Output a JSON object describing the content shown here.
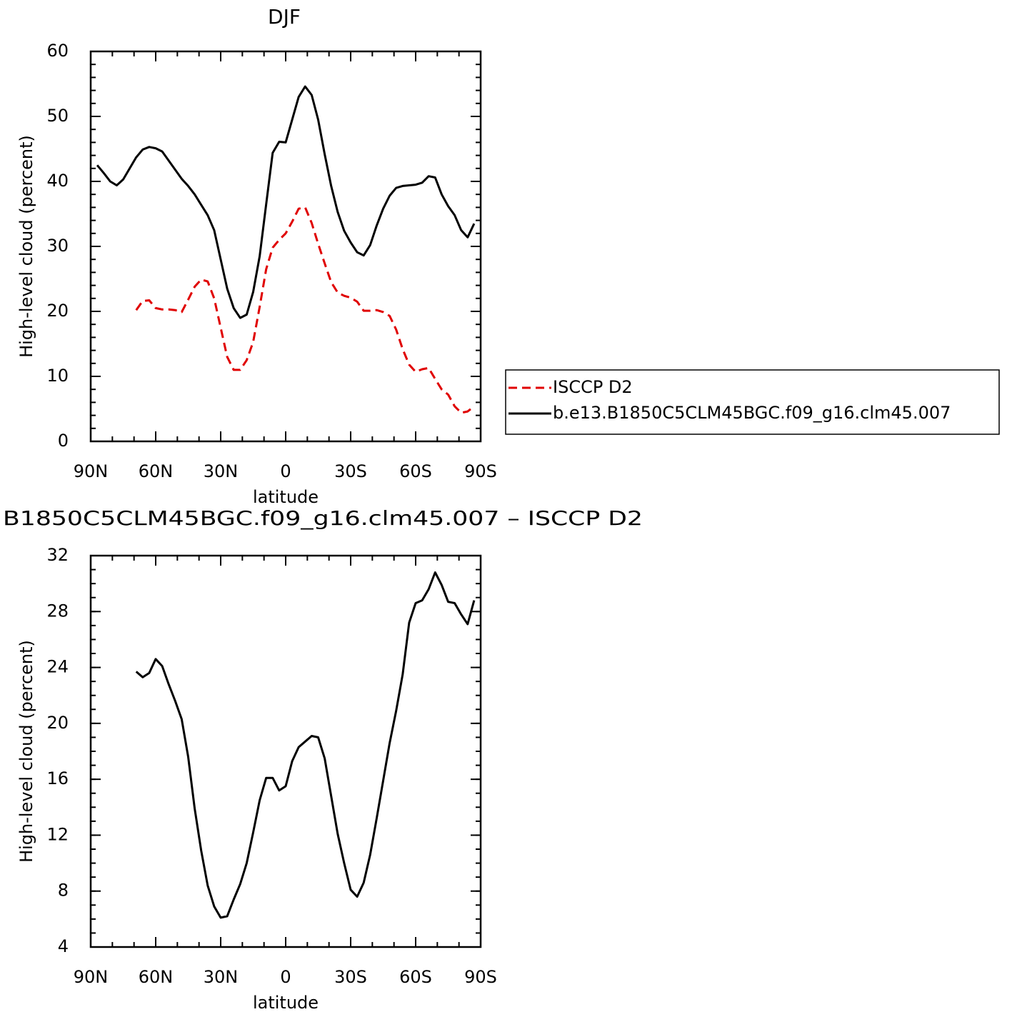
{
  "chart_data": [
    {
      "type": "line",
      "title": "DJF",
      "xlabel": "latitude",
      "ylabel": "High-level cloud (percent)",
      "x": [
        87,
        84,
        81,
        78,
        75,
        72,
        69,
        66,
        63,
        60,
        57,
        54,
        51,
        48,
        45,
        42,
        39,
        36,
        33,
        30,
        27,
        24,
        21,
        18,
        15,
        12,
        9,
        6,
        3,
        0,
        -3,
        -6,
        -9,
        -12,
        -15,
        -18,
        -21,
        -24,
        -27,
        -30,
        -33,
        -36,
        -39,
        -42,
        -45,
        -48,
        -51,
        -54,
        -57,
        -60,
        -63,
        -66,
        -69,
        -72,
        -75,
        -78,
        -81,
        -84,
        -87
      ],
      "series": [
        {
          "name": "ISCCP D2",
          "color": "#e00000",
          "dashed": true,
          "values": [
            null,
            null,
            null,
            null,
            null,
            null,
            20.2,
            21.6,
            21.7,
            20.5,
            20.3,
            20.3,
            20.2,
            19.9,
            21.8,
            23.8,
            24.9,
            24.6,
            22.0,
            17.5,
            13.0,
            11.0,
            11.0,
            12.5,
            15.3,
            20.7,
            26.5,
            29.8,
            31.0,
            32.0,
            33.8,
            35.8,
            36.0,
            33.6,
            30.4,
            27.4,
            24.5,
            22.9,
            22.4,
            22.1,
            21.5,
            20.1,
            20.1,
            20.2,
            19.9,
            19.3,
            17.2,
            14.2,
            11.8,
            10.7,
            11.1,
            11.3,
            9.6,
            8.0,
            7.2,
            5.4,
            4.4,
            4.6,
            5.4
          ]
        },
        {
          "name": "b.e13.B1850C5CLM45BGC.f09_g16.clm45.007",
          "color": "#000000",
          "dashed": false,
          "values": [
            42.5,
            41.3,
            40.0,
            39.4,
            40.3,
            42.0,
            43.7,
            44.9,
            45.3,
            45.1,
            44.6,
            43.2,
            41.8,
            40.4,
            39.3,
            38.0,
            36.4,
            34.8,
            32.5,
            28.0,
            23.5,
            20.5,
            19.0,
            19.5,
            23.0,
            28.5,
            36.5,
            44.4,
            46.1,
            46.0,
            49.5,
            53.0,
            54.6,
            53.3,
            49.5,
            44.2,
            39.3,
            35.3,
            32.4,
            30.6,
            29.1,
            28.6,
            30.2,
            33.2,
            35.8,
            37.8,
            39.0,
            39.3,
            39.4,
            39.5,
            39.8,
            40.8,
            40.6,
            38.0,
            36.2,
            34.8,
            32.5,
            31.4,
            33.5
          ]
        }
      ],
      "xlim": [
        90,
        -90
      ],
      "xticks": [
        {
          "value": 90,
          "label": "90N"
        },
        {
          "value": 60,
          "label": "60N"
        },
        {
          "value": 30,
          "label": "30N"
        },
        0,
        {
          "value": -30,
          "label": "30S"
        },
        {
          "value": -60,
          "label": "60S"
        },
        {
          "value": -90,
          "label": "90S"
        }
      ],
      "ylim": [
        0,
        60
      ],
      "yticks": [
        0,
        10,
        20,
        30,
        40,
        50,
        60
      ],
      "legend": "right"
    },
    {
      "type": "line",
      "title": "B1850C5CLM45BGC.f09_g16.clm45.007 – ISCCP D2",
      "xlabel": "latitude",
      "ylabel": "High-level cloud (percent)",
      "x": [
        87,
        84,
        81,
        78,
        75,
        72,
        69,
        66,
        63,
        60,
        57,
        54,
        51,
        48,
        45,
        42,
        39,
        36,
        33,
        30,
        27,
        24,
        21,
        18,
        15,
        12,
        9,
        6,
        3,
        0,
        -3,
        -6,
        -9,
        -12,
        -15,
        -18,
        -21,
        -24,
        -27,
        -30,
        -33,
        -36,
        -39,
        -42,
        -45,
        -48,
        -51,
        -54,
        -57,
        -60,
        -63,
        -66,
        -69,
        -72,
        -75,
        -78,
        -81,
        -84,
        -87
      ],
      "series": [
        {
          "color": "#000000",
          "dashed": false,
          "values": [
            null,
            null,
            null,
            null,
            null,
            null,
            23.7,
            23.3,
            23.6,
            24.6,
            24.1,
            22.8,
            21.6,
            20.3,
            17.6,
            13.9,
            10.9,
            8.4,
            6.9,
            6.1,
            6.2,
            7.4,
            8.5,
            10.0,
            12.2,
            14.5,
            16.1,
            16.1,
            15.2,
            15.5,
            17.3,
            18.3,
            18.7,
            19.1,
            19.0,
            17.5,
            14.8,
            12.1,
            10.0,
            8.1,
            7.6,
            8.6,
            10.6,
            13.2,
            15.9,
            18.6,
            20.9,
            23.5,
            27.2,
            28.6,
            28.8,
            29.6,
            30.8,
            29.9,
            28.7,
            28.6,
            27.8,
            27.1,
            28.8
          ]
        }
      ],
      "xlim": [
        90,
        -90
      ],
      "xticks": [
        {
          "value": 90,
          "label": "90N"
        },
        {
          "value": 60,
          "label": "60N"
        },
        {
          "value": 30,
          "label": "30N"
        },
        0,
        {
          "value": -30,
          "label": "30S"
        },
        {
          "value": -60,
          "label": "60S"
        },
        {
          "value": -90,
          "label": "90S"
        }
      ],
      "ylim": [
        4,
        32
      ],
      "yticks": [
        4,
        8,
        12,
        16,
        20,
        24,
        28,
        32
      ]
    }
  ]
}
